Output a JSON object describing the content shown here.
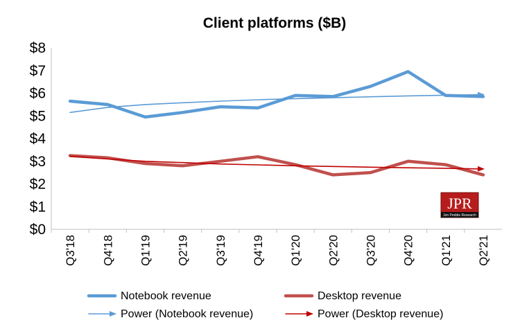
{
  "chart_data": {
    "type": "line",
    "title": "Client platforms ($B)",
    "categories": [
      "Q3'18",
      "Q4'18",
      "Q1'19",
      "Q2'19",
      "Q3'19",
      "Q4'19",
      "Q1'20",
      "Q2'20",
      "Q3'20",
      "Q4'20",
      "Q1'21",
      "Q2'21"
    ],
    "y_ticks": [
      "$0",
      "$1",
      "$2",
      "$3",
      "$4",
      "$5",
      "$6",
      "$7",
      "$8"
    ],
    "ylim": [
      0,
      8
    ],
    "grid": false,
    "legend_position": "bottom",
    "series": [
      {
        "name": "Notebook revenue",
        "color": "#5b9bd5",
        "style": "thick",
        "values": [
          5.65,
          5.5,
          4.95,
          5.15,
          5.4,
          5.35,
          5.9,
          5.85,
          6.3,
          6.95,
          5.9,
          5.85
        ]
      },
      {
        "name": "Desktop revenue",
        "color": "#c0504d",
        "style": "thick",
        "values": [
          3.25,
          3.15,
          2.9,
          2.8,
          3.0,
          3.2,
          2.85,
          2.4,
          2.5,
          3.0,
          2.85,
          2.4
        ]
      },
      {
        "name": "Power (Notebook revenue)",
        "color": "#5b9bd5",
        "style": "trend",
        "values": [
          5.15,
          5.37,
          5.5,
          5.58,
          5.65,
          5.71,
          5.76,
          5.8,
          5.84,
          5.88,
          5.91,
          5.94
        ]
      },
      {
        "name": "Power (Desktop revenue)",
        "color": "#c00000",
        "style": "trend",
        "values": [
          3.22,
          3.1,
          3.0,
          2.94,
          2.88,
          2.84,
          2.8,
          2.77,
          2.74,
          2.71,
          2.69,
          2.66
        ]
      }
    ]
  },
  "logo": {
    "text": "JPR",
    "subtext": "Jon Peddie Research"
  }
}
